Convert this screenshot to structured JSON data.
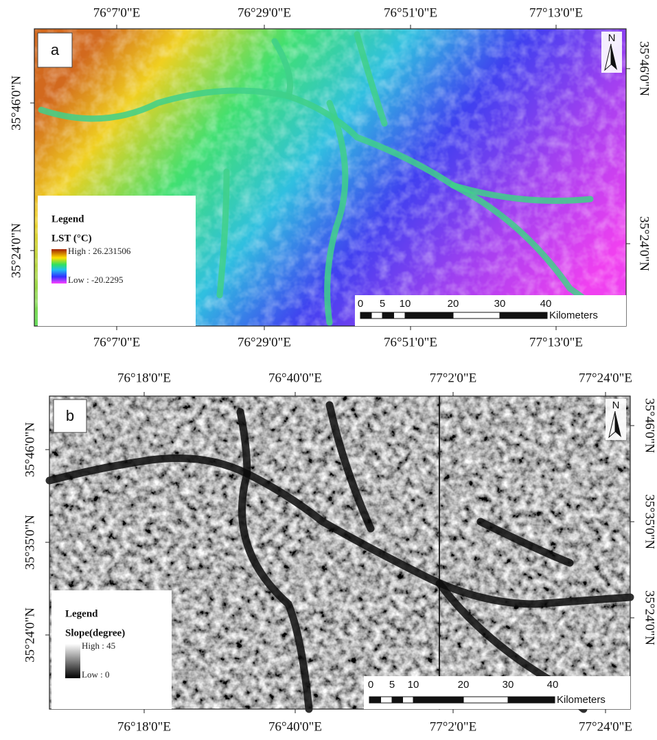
{
  "panels": [
    {
      "label": "a",
      "top_labels": [
        "76°7'0\"E",
        "76°29'0\"E",
        "76°51'0\"E",
        "77°13'0\"E"
      ],
      "bottom_labels": [
        "76°7'0\"E",
        "76°29'0\"E",
        "76°51'0\"E",
        "77°13'0\"E"
      ],
      "left_labels": [
        "35°46'0\"N",
        "35°24'0\"N"
      ],
      "right_labels": [
        "35°46'0\"N",
        "35°24'0\"N"
      ],
      "north": "N",
      "legend": {
        "title": "Legend",
        "field": "LST (°C)",
        "high": "High : 26.231506",
        "low": "Low : -20.2295"
      },
      "scale": {
        "ticks": [
          "0",
          "5",
          "10",
          "20",
          "30",
          "40"
        ],
        "unit": "Kilometers"
      }
    },
    {
      "label": "b",
      "top_labels": [
        "76°18'0\"E",
        "76°40'0\"E",
        "77°2'0\"E",
        "77°24'0\"E"
      ],
      "bottom_labels": [
        "76°18'0\"E",
        "76°40'0\"E",
        "77°2'0\"E",
        "77°24'0\"E"
      ],
      "left_labels": [
        "35°46'0\"N",
        "35°35'0\"N",
        "35°24'0\"N"
      ],
      "right_labels": [
        "35°46'0\"N",
        "35°35'0\"N",
        "35°24'0\"N"
      ],
      "north": "N",
      "legend": {
        "title": "Legend",
        "field": "Slope(degree)",
        "high": "High : 45",
        "low": "Low : 0"
      },
      "scale": {
        "ticks": [
          "0",
          "5",
          "10",
          "20",
          "30",
          "40"
        ],
        "unit": "Kilometers"
      }
    }
  ]
}
